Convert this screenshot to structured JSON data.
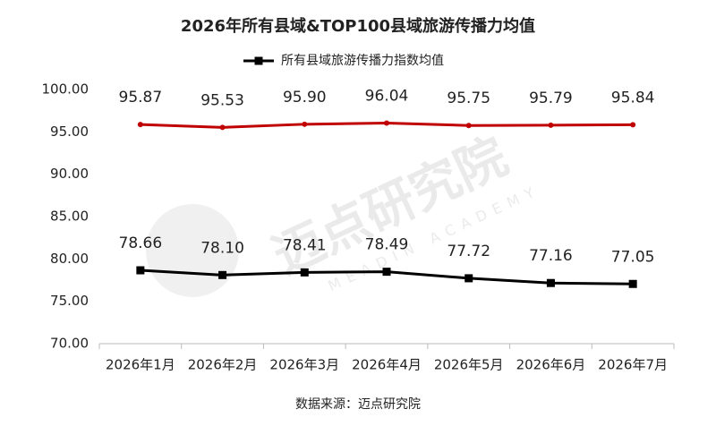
{
  "chart_data": {
    "type": "line",
    "title": "2026年所有县域&TOP100县域旅游传播力均值",
    "categories": [
      "2026年1月",
      "2026年2月",
      "2026年3月",
      "2026年4月",
      "2026年5月",
      "2026年6月",
      "2026年7月"
    ],
    "series": [
      {
        "color": "#c00000",
        "values": [
          95.87,
          95.53,
          95.9,
          96.04,
          95.75,
          95.79,
          95.84
        ],
        "value_labels": [
          "95.87",
          "95.53",
          "95.90",
          "96.04",
          "95.75",
          "95.79",
          "95.84"
        ]
      },
      {
        "name": "所有县域旅游传播力指数均值",
        "color": "#000000",
        "marker": "square",
        "values": [
          78.66,
          78.1,
          78.41,
          78.49,
          77.72,
          77.16,
          77.05
        ],
        "value_labels": [
          "78.66",
          "78.10",
          "78.41",
          "78.49",
          "77.72",
          "77.16",
          "77.05"
        ]
      }
    ],
    "ylim": [
      70,
      100
    ],
    "yticks": [
      {
        "value": 70,
        "label": "70.00"
      },
      {
        "value": 75,
        "label": "75.00"
      },
      {
        "value": 80,
        "label": "80.00"
      },
      {
        "value": 85,
        "label": "85.00"
      },
      {
        "value": 90,
        "label": "90.00"
      },
      {
        "value": 95,
        "label": "95.00"
      },
      {
        "value": 100,
        "label": "100.00"
      }
    ],
    "grid": false,
    "legend": "top",
    "watermark": {
      "name": "迈点研究院",
      "sub": "MEADIN ACADEMY"
    },
    "source": "数据来源：迈点研究院"
  }
}
